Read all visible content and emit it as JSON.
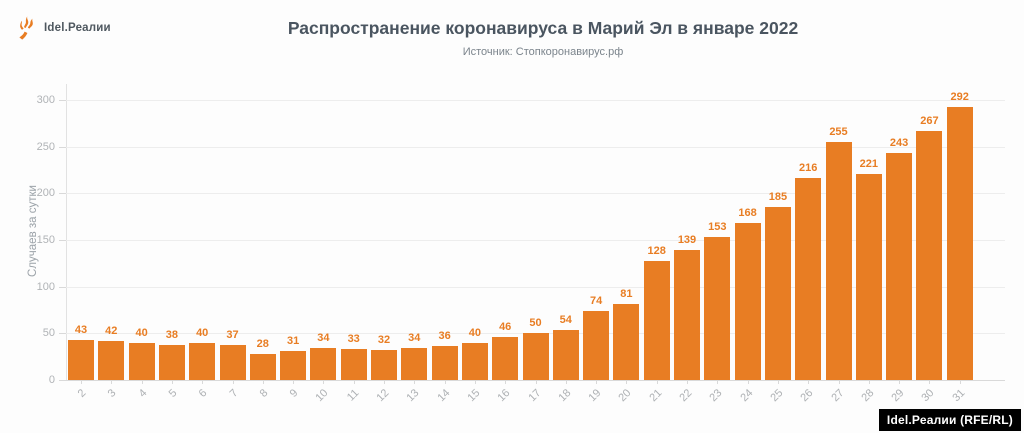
{
  "logo": {
    "text": "Idel.Реалии",
    "icon": "torch-icon",
    "brand_color": "#E87D23"
  },
  "header": {
    "title": "Распространение коронавируса в Марий Эл в январе 2022",
    "subtitle": "Источник: Стопкоронавирус.рф"
  },
  "chart_data": {
    "type": "bar",
    "title": "Распространение коронавируса в Марий Эл в январе 2022",
    "source": "Источник: Стопкоронавирус.рф",
    "xlabel": "",
    "ylabel": "Случаев за сутки",
    "categories": [
      "2",
      "3",
      "4",
      "5",
      "6",
      "7",
      "8",
      "9",
      "10",
      "11",
      "12",
      "13",
      "14",
      "15",
      "16",
      "17",
      "18",
      "19",
      "20",
      "21",
      "22",
      "23",
      "24",
      "25",
      "26",
      "27",
      "28",
      "29",
      "30",
      "31"
    ],
    "values": [
      43,
      42,
      40,
      38,
      40,
      37,
      28,
      31,
      34,
      33,
      32,
      34,
      36,
      40,
      46,
      50,
      54,
      74,
      81,
      128,
      139,
      153,
      168,
      185,
      216,
      255,
      221,
      243,
      267,
      292
    ],
    "ylim": [
      0,
      300
    ],
    "yticks": [
      0,
      50,
      100,
      150,
      200,
      250,
      300
    ],
    "grid": true,
    "legend": "none",
    "bar_color": "#E87D23",
    "value_label_color": "#E87D23"
  },
  "footer": {
    "credit": "Idel.Реалии (RFE/RL)"
  }
}
